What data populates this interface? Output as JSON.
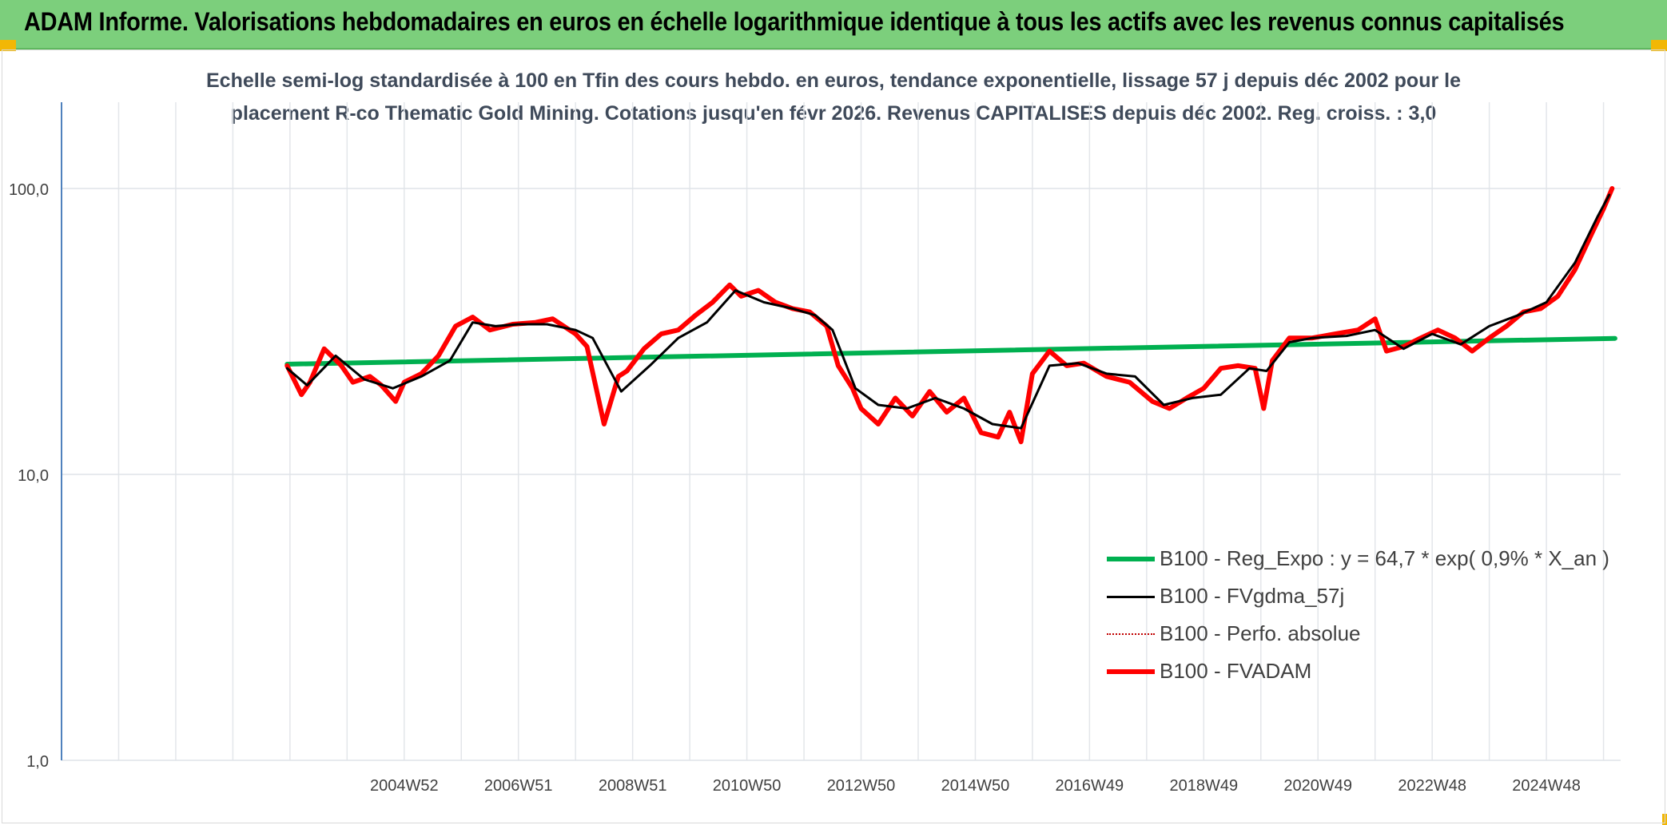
{
  "header": {
    "title": "ADAM Informe. Valorisations hebdomadaires en euros en échelle logarithmique identique à tous les actifs avec les revenus connus capitalisés"
  },
  "chart_data": {
    "type": "line",
    "title_line1": "Echelle semi-log standardisée à 100 en Tfin des cours hebdo. en euros, tendance exponentielle, lissage 57 j depuis déc 2002 pour le",
    "title_line2": "placement R-co Thematic Gold Mining. Cotations jusqu'en févr 2026. Revenus CAPITALISES depuis déc 2002. Reg. croiss. : 3,0",
    "y_scale": "log",
    "ylim": [
      1,
      100
    ],
    "y_ticks": [
      "1,0",
      "10,0",
      "100,0"
    ],
    "x_ticks": [
      "2004W52",
      "2006W51",
      "2008W51",
      "2010W50",
      "2012W50",
      "2014W50",
      "2016W49",
      "2018W49",
      "2020W49",
      "2022W48",
      "2024W48"
    ],
    "xlim": [
      1999.0,
      2026.3
    ],
    "grid": true,
    "legend_position": "bottom-right",
    "series": [
      {
        "name": "B100 - Reg_Expo : y = 64,7 * exp( 0,9% *  X_an )",
        "color": "#00b050",
        "style": "solid-thick",
        "x": [
          2002.95,
          2026.2
        ],
        "values": [
          24.3,
          29.9
        ]
      },
      {
        "name": "B100 - FVgdma_57j",
        "color": "#000000",
        "style": "solid",
        "x": [
          2002.95,
          2003.3,
          2003.8,
          2004.3,
          2004.8,
          2005.3,
          2005.8,
          2006.2,
          2006.6,
          2007.0,
          2007.5,
          2008.0,
          2008.3,
          2008.8,
          2009.3,
          2009.8,
          2010.3,
          2010.8,
          2011.3,
          2011.8,
          2012.2,
          2012.5,
          2012.9,
          2013.3,
          2013.8,
          2014.3,
          2014.8,
          2015.3,
          2015.8,
          2016.3,
          2016.8,
          2017.3,
          2017.8,
          2018.3,
          2018.8,
          2019.3,
          2019.8,
          2020.1,
          2020.5,
          2020.9,
          2021.5,
          2022.0,
          2022.5,
          2023.0,
          2023.5,
          2024.0,
          2024.5,
          2025.0,
          2025.5,
          2025.9,
          2026.1
        ],
        "values": [
          23.5,
          20.5,
          26.0,
          21.5,
          20.0,
          22.0,
          25.0,
          34.0,
          33.0,
          33.5,
          33.5,
          32.0,
          30.0,
          19.5,
          24.0,
          30.0,
          34.0,
          44.0,
          40.0,
          38.0,
          36.0,
          32.0,
          20.0,
          17.5,
          17.0,
          18.5,
          17.0,
          15.0,
          14.5,
          24.0,
          24.5,
          22.5,
          22.0,
          17.5,
          18.5,
          19.0,
          23.5,
          23.0,
          29.0,
          30.0,
          30.5,
          32.0,
          27.5,
          31.0,
          28.5,
          33.0,
          36.0,
          40.0,
          55.0,
          80.0,
          95.0
        ]
      },
      {
        "name": "B100 - Perfo. absolue",
        "color": "#c00000",
        "style": "dotted",
        "x": [],
        "values": []
      },
      {
        "name": "B100 - FVADAM",
        "color": "#ff0000",
        "style": "solid-thick",
        "x": [
          2002.95,
          2003.2,
          2003.35,
          2003.6,
          2003.9,
          2004.1,
          2004.4,
          2004.6,
          2004.85,
          2005.0,
          2005.3,
          2005.6,
          2005.9,
          2006.2,
          2006.5,
          2006.9,
          2007.3,
          2007.6,
          2008.0,
          2008.2,
          2008.5,
          2008.75,
          2008.9,
          2009.2,
          2009.5,
          2009.8,
          2010.1,
          2010.4,
          2010.7,
          2010.9,
          2011.2,
          2011.5,
          2011.8,
          2012.1,
          2012.4,
          2012.6,
          2012.85,
          2013.0,
          2013.3,
          2013.6,
          2013.9,
          2014.2,
          2014.5,
          2014.8,
          2015.1,
          2015.4,
          2015.6,
          2015.8,
          2016.0,
          2016.3,
          2016.6,
          2016.9,
          2017.3,
          2017.7,
          2018.1,
          2018.4,
          2018.7,
          2019.0,
          2019.3,
          2019.6,
          2019.9,
          2020.05,
          2020.2,
          2020.5,
          2020.9,
          2021.3,
          2021.7,
          2022.0,
          2022.2,
          2022.5,
          2022.8,
          2023.1,
          2023.4,
          2023.7,
          2024.0,
          2024.3,
          2024.6,
          2024.9,
          2025.2,
          2025.5,
          2025.8,
          2026.0,
          2026.15
        ],
        "values": [
          24.0,
          19.0,
          21.0,
          27.5,
          24.0,
          21.0,
          22.0,
          20.5,
          18.0,
          21.0,
          22.5,
          26.0,
          33.0,
          35.5,
          32.0,
          33.5,
          34.0,
          35.0,
          31.0,
          28.0,
          15.0,
          22.0,
          23.0,
          27.5,
          31.0,
          32.0,
          36.0,
          40.0,
          46.0,
          42.0,
          44.0,
          40.0,
          38.0,
          37.0,
          33.0,
          24.0,
          20.0,
          17.0,
          15.0,
          18.5,
          16.0,
          19.5,
          16.5,
          18.5,
          14.0,
          13.5,
          16.5,
          13.0,
          22.5,
          27.0,
          24.0,
          24.5,
          22.0,
          21.0,
          18.0,
          17.0,
          18.5,
          20.0,
          23.5,
          24.0,
          23.5,
          17.0,
          25.0,
          30.0,
          30.0,
          31.0,
          32.0,
          35.0,
          27.0,
          28.0,
          30.0,
          32.0,
          30.0,
          27.0,
          30.0,
          33.0,
          37.0,
          38.0,
          42.0,
          52.0,
          70.0,
          85.0,
          100.0
        ]
      }
    ]
  }
}
